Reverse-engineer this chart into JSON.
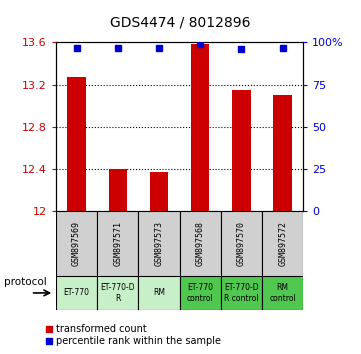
{
  "title": "GDS4474 / 8012896",
  "samples": [
    "GSM897569",
    "GSM897571",
    "GSM897573",
    "GSM897568",
    "GSM897570",
    "GSM897572"
  ],
  "red_values": [
    13.27,
    12.4,
    12.37,
    13.59,
    13.15,
    13.1
  ],
  "blue_values": [
    97,
    97,
    97,
    99,
    96,
    97
  ],
  "ylim_left": [
    12,
    13.6
  ],
  "ylim_right": [
    0,
    100
  ],
  "yticks_left": [
    12,
    12.4,
    12.8,
    13.2,
    13.6
  ],
  "yticks_right": [
    0,
    25,
    50,
    75,
    100
  ],
  "ytick_labels_left": [
    "12",
    "12.4",
    "12.8",
    "13.2",
    "13.6"
  ],
  "ytick_labels_right": [
    "0",
    "25",
    "50",
    "75",
    "100%"
  ],
  "protocol_labels": [
    "ET-770",
    "ET-770-D\nR",
    "RM",
    "ET-770\ncontrol",
    "ET-770-D\nR control",
    "RM\ncontrol"
  ],
  "protocol_colors": [
    "#c8f0c8",
    "#c8f0c8",
    "#c8f0c8",
    "#50c850",
    "#50c850",
    "#50c850"
  ],
  "sample_bg_color": "#d0d0d0",
  "bar_color": "#cc0000",
  "dot_color": "#0000cc",
  "legend_red_label": "transformed count",
  "legend_blue_label": "percentile rank within the sample",
  "protocol_text": "protocol",
  "left_label_color": "#cc0000",
  "right_label_color": "#0000cc",
  "grid_dotted_ticks": [
    12.4,
    12.8,
    13.2
  ]
}
